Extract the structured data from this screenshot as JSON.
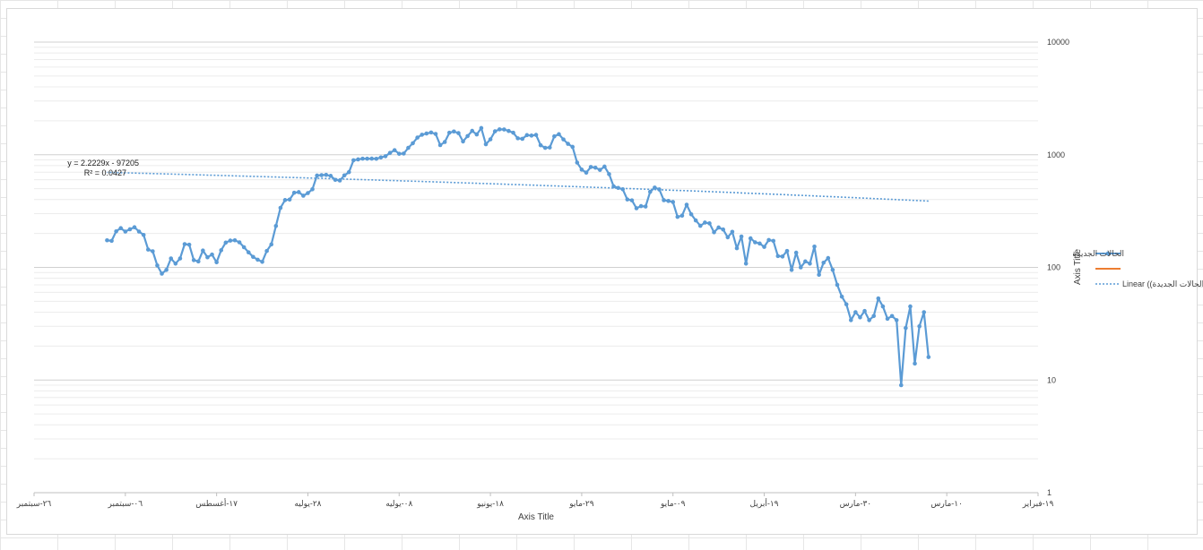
{
  "chart_data": {
    "type": "line",
    "xlabel": "Axis Title",
    "ylabel": "Axis Title",
    "y_scale": "log",
    "ylim": [
      1,
      10000
    ],
    "y_ticks": [
      "1",
      "10",
      "100",
      "1000",
      "10000"
    ],
    "x_axis_direction": "right-to-left",
    "xlim": [
      "2020-02-19",
      "2020-09-26"
    ],
    "x_ticks": [
      {
        "date": "2020-09-26",
        "label": "٢٦-سبتمبر"
      },
      {
        "date": "2020-09-06",
        "label": "٠٦-سبتمبر"
      },
      {
        "date": "2020-08-17",
        "label": "١٧-أغسطس"
      },
      {
        "date": "2020-07-28",
        "label": "٢٨-يوليه"
      },
      {
        "date": "2020-07-08",
        "label": "٠٨-يوليه"
      },
      {
        "date": "2020-06-18",
        "label": "١٨-يونيو"
      },
      {
        "date": "2020-05-29",
        "label": "٢٩-مايو"
      },
      {
        "date": "2020-05-09",
        "label": "٠٩-مايو"
      },
      {
        "date": "2020-04-19",
        "label": "١٩-أبريل"
      },
      {
        "date": "2020-03-30",
        "label": "٣٠-مارس"
      },
      {
        "date": "2020-03-10",
        "label": "١٠-مارس"
      },
      {
        "date": "2020-02-19",
        "label": "١٩-فبراير"
      }
    ],
    "grid": true,
    "legend_position": "right",
    "series": [
      {
        "name": "الحالات الجديدة",
        "color": "#5b9bd5",
        "marker": "circle",
        "start_date": "2020-03-14",
        "values": [
          16,
          40,
          30,
          14,
          45,
          29,
          9,
          34,
          37,
          35,
          45,
          53,
          37,
          34,
          41,
          36,
          40,
          34,
          47,
          55,
          70,
          95,
          121,
          110,
          86,
          153,
          108,
          113,
          100,
          135,
          95,
          140,
          125,
          126,
          172,
          175,
          152,
          163,
          167,
          181,
          108,
          188,
          148,
          207,
          185,
          217,
          226,
          205,
          246,
          250,
          234,
          261,
          296,
          360,
          288,
          281,
          381,
          389,
          395,
          492,
          511,
          469,
          347,
          350,
          335,
          394,
          401,
          494,
          508,
          524,
          673,
          785,
          734,
          768,
          779,
          694,
          738,
          852,
          1175,
          1250,
          1368,
          1521,
          1457,
          1160,
          1152,
          1214,
          1501,
          1480,
          1493,
          1385,
          1400,
          1569,
          1626,
          1677,
          1680,
          1614,
          1371,
          1239,
          1725,
          1515,
          1630,
          1464,
          1312,
          1556,
          1608,
          1568,
          1297,
          1218,
          1530,
          1577,
          1544,
          1506,
          1420,
          1265,
          1152,
          1025,
          1020,
          1098,
          1039,
          970,
          946,
          921,
          924,
          922,
          923,
          909,
          894,
          701,
          656,
          591,
          599,
          649,
          663,
          659,
          654,
          494,
          457,
          433,
          466,
          460,
          400,
          396,
          338,
          233,
          160,
          140,
          112,
          117,
          124,
          136,
          151,
          167,
          174,
          173,
          166,
          142,
          111,
          130,
          123,
          141,
          113,
          116,
          159,
          161,
          120,
          108,
          120,
          95,
          88,
          104,
          139,
          144,
          194,
          208,
          227,
          218,
          208,
          223,
          209,
          172,
          174
        ]
      },
      {
        "name": "",
        "color": "#ed7d31",
        "values": []
      }
    ],
    "trendline": {
      "name": "Linear (الحالات الجديدة)",
      "legend_label": "Linear ((الحالات الجديدة",
      "type": "linear",
      "equation": "y = 2.2229x - 97205",
      "r_squared": "R² = 0.0427",
      "color": "#5b9bd5"
    }
  }
}
